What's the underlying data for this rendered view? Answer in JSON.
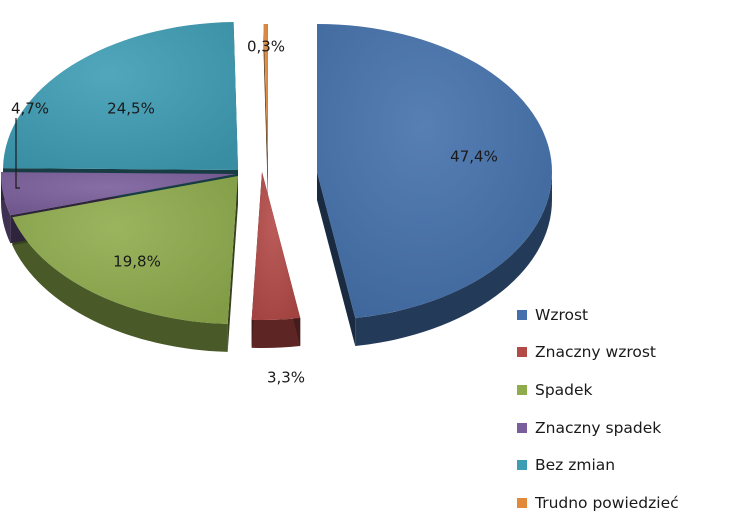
{
  "chart_data": {
    "type": "pie",
    "title": "",
    "style": "exploded-3d",
    "legend_position": "right",
    "categories": [
      "Wzrost",
      "Znaczny wzrost",
      "Spadek",
      "Znaczny spadek",
      "Bez zmian",
      "Trudno powiedzieć"
    ],
    "values": [
      47.4,
      3.3,
      19.8,
      4.7,
      24.5,
      0.3
    ],
    "value_labels": [
      "47,4%",
      "3,3%",
      "19,8%",
      "4,7%",
      "24,5%",
      "0,3%"
    ],
    "colors": [
      "#4471AC",
      "#B34A47",
      "#8FAC4D",
      "#7A5E9B",
      "#3E9DB4",
      "#E3893A"
    ]
  }
}
